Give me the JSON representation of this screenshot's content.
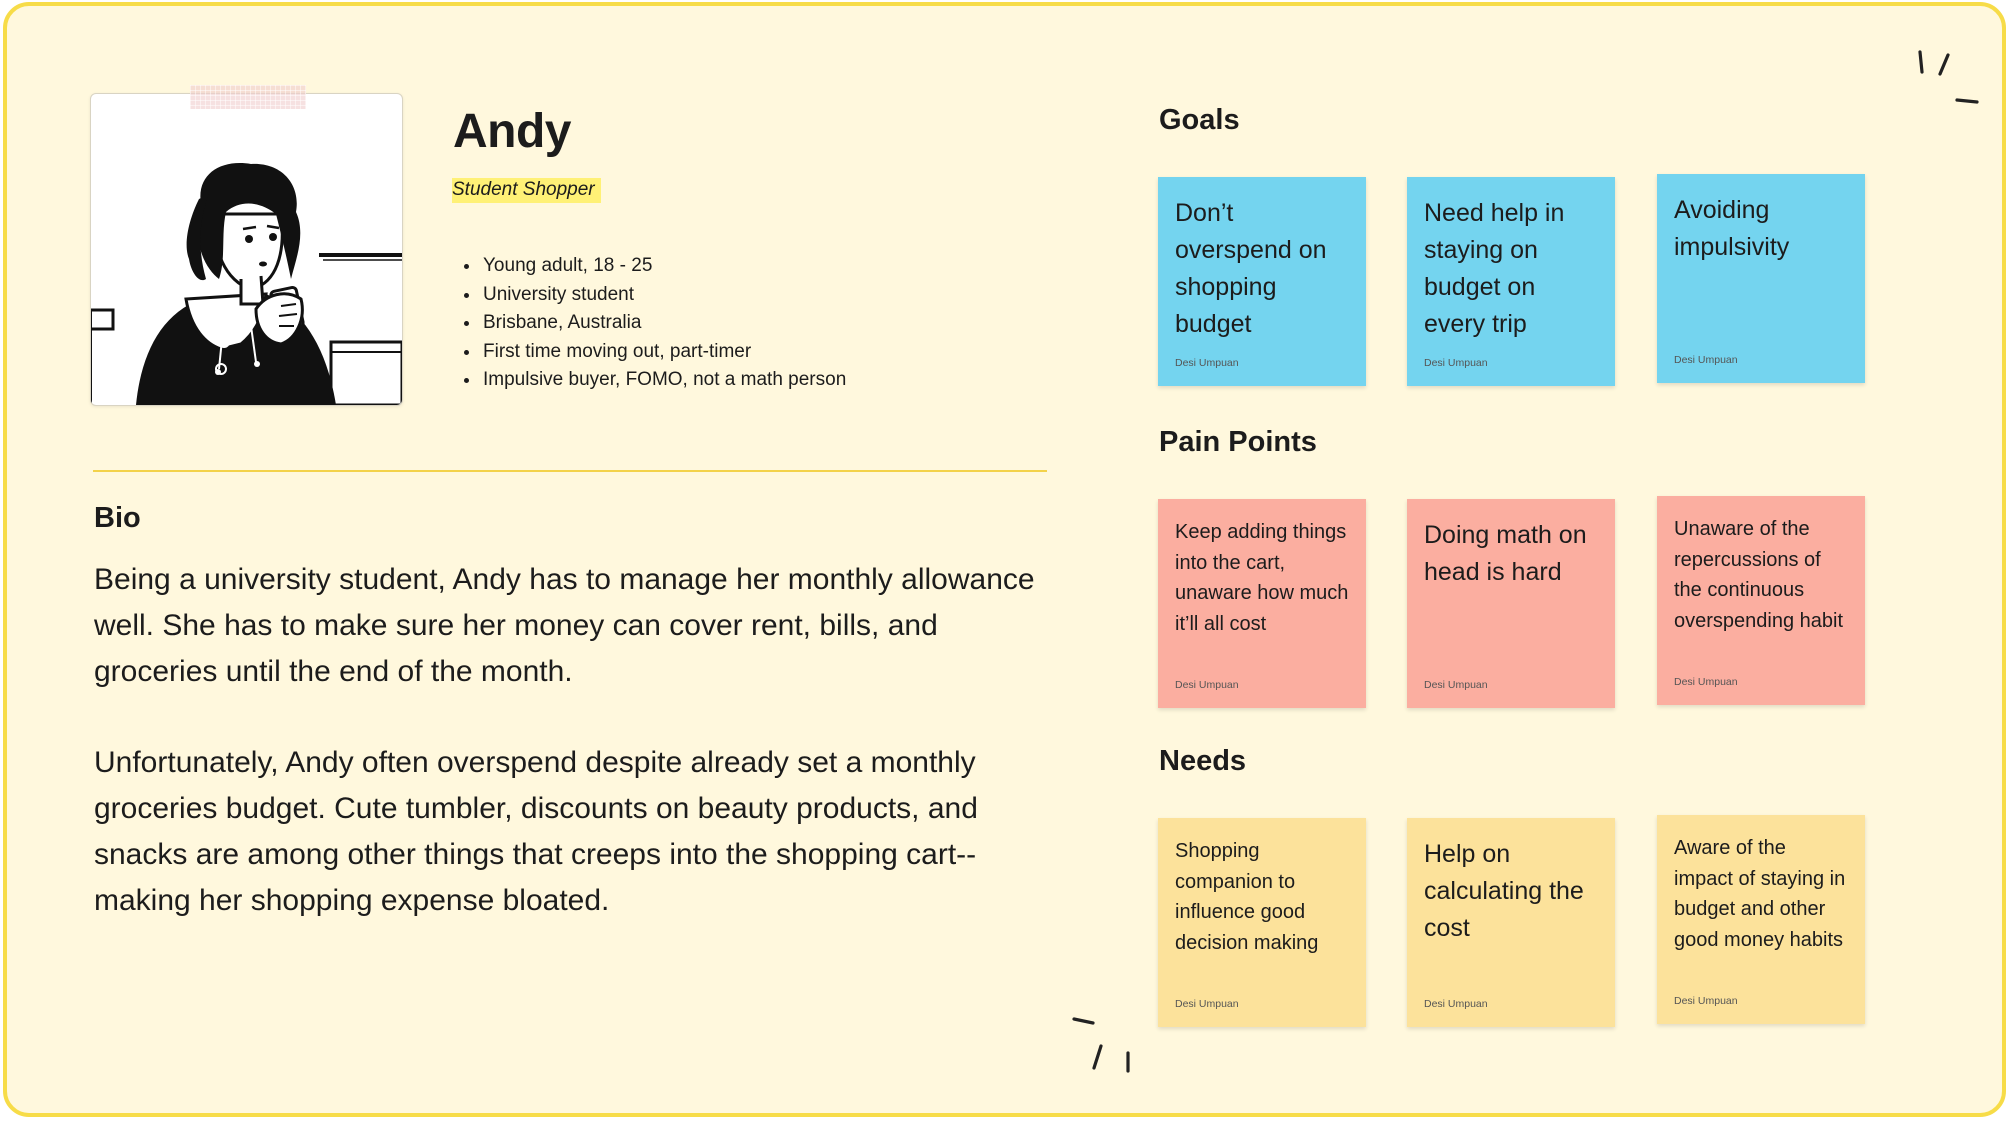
{
  "persona": {
    "name": "Andy",
    "tag": "Student Shopper",
    "attributes": [
      "Young adult, 18 - 25",
      "University student",
      "Brisbane, Australia",
      "First time moving out, part-timer",
      "Impulsive buyer, FOMO, not a math person"
    ]
  },
  "bio": {
    "heading": "Bio",
    "paragraphs": [
      "Being a university student, Andy has to manage her monthly allowance well. She has to make sure her money can cover rent, bills, and groceries until the end of the month.",
      "Unfortunately, Andy often overspend despite already set a monthly groceries budget. Cute tumbler, discounts on beauty products, and snacks are among other things that creeps into the shopping cart--making her shopping expense bloated."
    ]
  },
  "goals": {
    "heading": "Goals",
    "color": "#74d4ef",
    "notes": [
      {
        "text": "Don’t overspend on shopping budget",
        "author": "Desi Umpuan"
      },
      {
        "text": "Need help in staying on budget on every trip",
        "author": "Desi Umpuan"
      },
      {
        "text": "Avoiding impulsivity",
        "author": "Desi Umpuan"
      }
    ]
  },
  "pain_points": {
    "heading": "Pain Points",
    "color": "#fbaea0",
    "notes": [
      {
        "text": "Keep adding things into the cart, unaware how much it’ll all cost",
        "author": "Desi Umpuan"
      },
      {
        "text": "Doing math on head is hard",
        "author": "Desi Umpuan"
      },
      {
        "text": "Unaware of the repercussions of the continuous overspending habit",
        "author": "Desi Umpuan"
      }
    ]
  },
  "needs": {
    "heading": "Needs",
    "color": "#fce29b",
    "notes": [
      {
        "text": "Shopping companion to influence good decision making",
        "author": "Desi Umpuan"
      },
      {
        "text": "Help on calculating the cost",
        "author": "Desi Umpuan"
      },
      {
        "text": "Aware of the impact of staying in budget and other good money habits",
        "author": "Desi Umpuan"
      }
    ]
  },
  "colors": {
    "background": "#fff8dd",
    "border": "#f7dc48",
    "tag_highlight": "#fff176"
  }
}
